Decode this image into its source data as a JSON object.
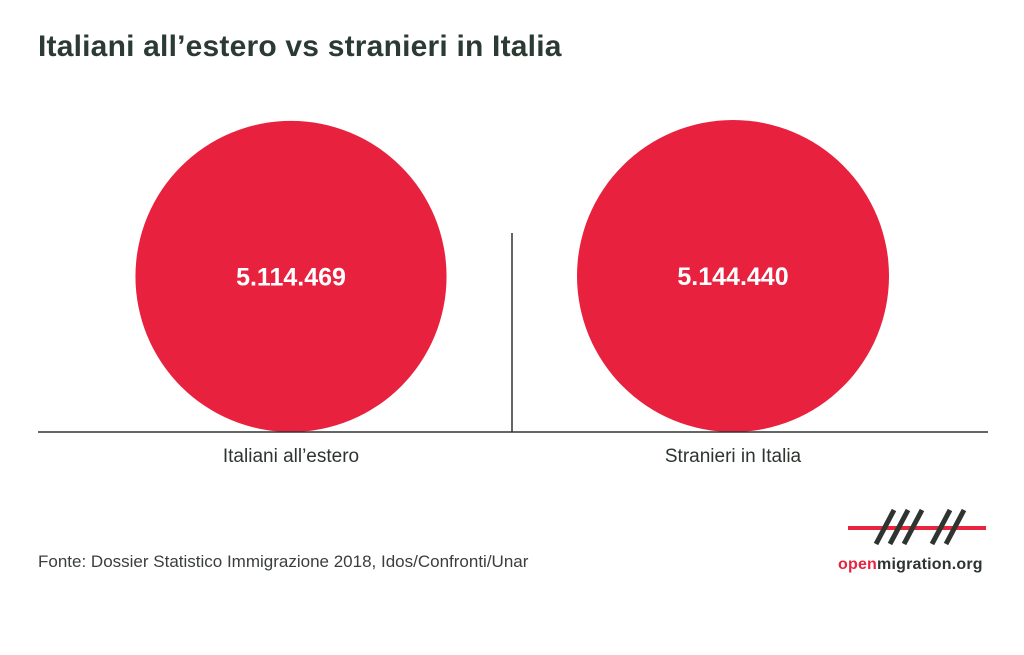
{
  "title": "Italiani all’estero vs stranieri in Italia",
  "source": "Fonte: Dossier Statistico Immigrazione 2018, Idos/Confronti/Unar",
  "logo": {
    "text_red": "open",
    "text_dark": "migration.org"
  },
  "colors": {
    "bubble": "#e8213f",
    "axis": "#2e3430",
    "label": "#2e3430",
    "value_text": "#ffffff"
  },
  "chart_data": {
    "type": "bubble",
    "categories": [
      "Italiani all’estero",
      "Stranieri in Italia"
    ],
    "values": [
      5114469,
      5144440
    ],
    "value_labels": [
      "5.114.469",
      "5.144.440"
    ],
    "title": "Italiani all’estero vs stranieri in Italia",
    "xlabel": "",
    "ylabel": "",
    "grid": false,
    "legend": "none"
  }
}
